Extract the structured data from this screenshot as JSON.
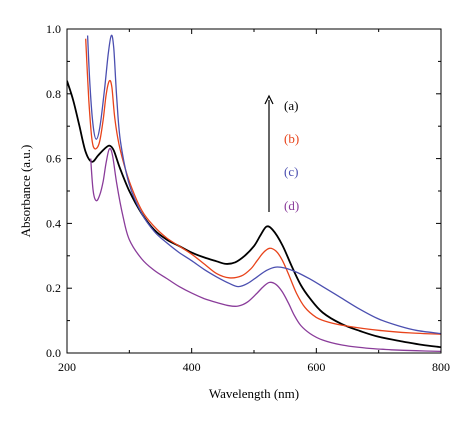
{
  "chart_data": {
    "type": "line",
    "xlabel": "Wavelength (nm)",
    "ylabel": "Absorbance (a.u.)",
    "xlim": [
      200,
      800
    ],
    "ylim": [
      0,
      1.0
    ],
    "xticks": [
      200,
      400,
      600,
      800
    ],
    "yticks": [
      0.0,
      0.2,
      0.4,
      0.6,
      0.8,
      1.0
    ],
    "xtick_labels": [
      "200",
      "400",
      "600",
      "800"
    ],
    "ytick_labels": [
      "0.0",
      "0.2",
      "0.4",
      "0.6",
      "0.8",
      "1.0"
    ],
    "grid": false,
    "legend_position": "upper-right",
    "series": [
      {
        "name": "(a)",
        "color": "#000000",
        "points": [
          [
            200,
            0.84
          ],
          [
            210,
            0.78
          ],
          [
            220,
            0.7
          ],
          [
            230,
            0.62
          ],
          [
            240,
            0.59
          ],
          [
            250,
            0.61
          ],
          [
            260,
            0.63
          ],
          [
            268,
            0.64
          ],
          [
            275,
            0.625
          ],
          [
            285,
            0.57
          ],
          [
            300,
            0.5
          ],
          [
            320,
            0.43
          ],
          [
            340,
            0.38
          ],
          [
            360,
            0.35
          ],
          [
            380,
            0.33
          ],
          [
            400,
            0.31
          ],
          [
            420,
            0.295
          ],
          [
            440,
            0.283
          ],
          [
            455,
            0.275
          ],
          [
            470,
            0.28
          ],
          [
            485,
            0.3
          ],
          [
            500,
            0.33
          ],
          [
            510,
            0.362
          ],
          [
            520,
            0.39
          ],
          [
            530,
            0.38
          ],
          [
            545,
            0.335
          ],
          [
            560,
            0.27
          ],
          [
            575,
            0.21
          ],
          [
            590,
            0.168
          ],
          [
            610,
            0.125
          ],
          [
            640,
            0.09
          ],
          [
            670,
            0.068
          ],
          [
            700,
            0.05
          ],
          [
            740,
            0.035
          ],
          [
            770,
            0.025
          ],
          [
            800,
            0.018
          ]
        ]
      },
      {
        "name": "(b)",
        "color": "#e8431a",
        "points": [
          [
            230,
            0.97
          ],
          [
            235,
            0.78
          ],
          [
            240,
            0.66
          ],
          [
            245,
            0.63
          ],
          [
            252,
            0.65
          ],
          [
            258,
            0.72
          ],
          [
            263,
            0.8
          ],
          [
            268,
            0.84
          ],
          [
            272,
            0.82
          ],
          [
            277,
            0.72
          ],
          [
            285,
            0.63
          ],
          [
            300,
            0.53
          ],
          [
            320,
            0.44
          ],
          [
            340,
            0.39
          ],
          [
            360,
            0.355
          ],
          [
            380,
            0.33
          ],
          [
            400,
            0.305
          ],
          [
            420,
            0.275
          ],
          [
            440,
            0.245
          ],
          [
            460,
            0.232
          ],
          [
            480,
            0.238
          ],
          [
            495,
            0.26
          ],
          [
            505,
            0.285
          ],
          [
            515,
            0.31
          ],
          [
            525,
            0.323
          ],
          [
            535,
            0.315
          ],
          [
            545,
            0.288
          ],
          [
            555,
            0.245
          ],
          [
            568,
            0.185
          ],
          [
            582,
            0.14
          ],
          [
            600,
            0.11
          ],
          [
            620,
            0.095
          ],
          [
            650,
            0.083
          ],
          [
            700,
            0.07
          ],
          [
            750,
            0.062
          ],
          [
            800,
            0.058
          ]
        ]
      },
      {
        "name": "(c)",
        "color": "#4b4fb0",
        "points": [
          [
            233,
            0.98
          ],
          [
            237,
            0.82
          ],
          [
            242,
            0.7
          ],
          [
            247,
            0.66
          ],
          [
            253,
            0.7
          ],
          [
            260,
            0.81
          ],
          [
            266,
            0.92
          ],
          [
            271,
            0.98
          ],
          [
            275,
            0.94
          ],
          [
            280,
            0.78
          ],
          [
            286,
            0.65
          ],
          [
            300,
            0.52
          ],
          [
            320,
            0.43
          ],
          [
            340,
            0.375
          ],
          [
            360,
            0.34
          ],
          [
            380,
            0.31
          ],
          [
            400,
            0.285
          ],
          [
            420,
            0.258
          ],
          [
            440,
            0.235
          ],
          [
            460,
            0.215
          ],
          [
            475,
            0.205
          ],
          [
            490,
            0.215
          ],
          [
            505,
            0.235
          ],
          [
            520,
            0.255
          ],
          [
            535,
            0.265
          ],
          [
            550,
            0.262
          ],
          [
            570,
            0.248
          ],
          [
            590,
            0.228
          ],
          [
            610,
            0.205
          ],
          [
            640,
            0.17
          ],
          [
            670,
            0.135
          ],
          [
            700,
            0.105
          ],
          [
            730,
            0.085
          ],
          [
            760,
            0.07
          ],
          [
            800,
            0.06
          ]
        ]
      },
      {
        "name": "(d)",
        "color": "#8a3c9a",
        "points": [
          [
            238,
            0.6
          ],
          [
            242,
            0.5
          ],
          [
            247,
            0.47
          ],
          [
            253,
            0.49
          ],
          [
            258,
            0.53
          ],
          [
            263,
            0.59
          ],
          [
            268,
            0.63
          ],
          [
            273,
            0.61
          ],
          [
            280,
            0.52
          ],
          [
            290,
            0.42
          ],
          [
            300,
            0.35
          ],
          [
            320,
            0.29
          ],
          [
            340,
            0.255
          ],
          [
            360,
            0.23
          ],
          [
            380,
            0.205
          ],
          [
            400,
            0.185
          ],
          [
            420,
            0.168
          ],
          [
            440,
            0.156
          ],
          [
            460,
            0.146
          ],
          [
            475,
            0.145
          ],
          [
            490,
            0.158
          ],
          [
            505,
            0.185
          ],
          [
            515,
            0.205
          ],
          [
            525,
            0.218
          ],
          [
            535,
            0.212
          ],
          [
            545,
            0.19
          ],
          [
            555,
            0.155
          ],
          [
            565,
            0.115
          ],
          [
            575,
            0.085
          ],
          [
            590,
            0.06
          ],
          [
            610,
            0.04
          ],
          [
            640,
            0.025
          ],
          [
            680,
            0.015
          ],
          [
            720,
            0.01
          ],
          [
            760,
            0.007
          ],
          [
            800,
            0.005
          ]
        ]
      }
    ],
    "annotation_arrow": "up"
  }
}
